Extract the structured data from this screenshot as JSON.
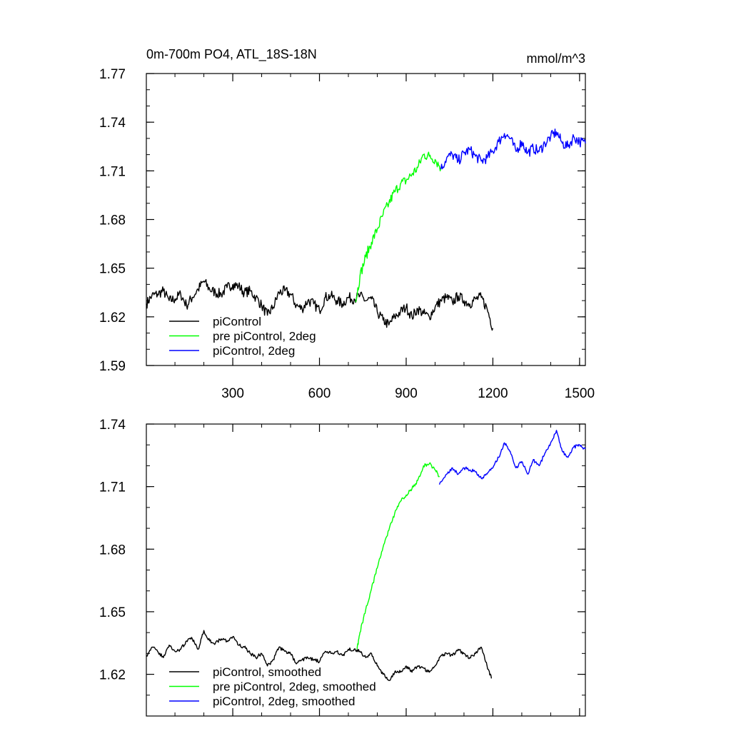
{
  "chart_data": [
    {
      "type": "line",
      "title_left": "0m-700m PO4, ATL_18S-18N",
      "title_right": "mmol/m^3",
      "xlim": [
        1,
        1520
      ],
      "ylim": [
        1.59,
        1.77
      ],
      "x_ticks": [
        300,
        600,
        900,
        1200,
        1500
      ],
      "x_tick_labels": [
        "300",
        "600",
        "900",
        "1200",
        "1500"
      ],
      "y_ticks": [
        1.59,
        1.62,
        1.65,
        1.68,
        1.71,
        1.74,
        1.77
      ],
      "y_tick_labels": [
        "1.59",
        "1.62",
        "1.65",
        "1.68",
        "1.71",
        "1.74",
        "1.77"
      ],
      "legend_position": "bottom-left",
      "series": [
        {
          "name": "piControl",
          "color": "#000000",
          "x": [
            1,
            20,
            40,
            60,
            80,
            100,
            120,
            140,
            160,
            180,
            200,
            220,
            240,
            260,
            280,
            300,
            320,
            340,
            360,
            380,
            400,
            420,
            440,
            460,
            480,
            500,
            520,
            540,
            560,
            580,
            600,
            620,
            640,
            660,
            680,
            700,
            720,
            740,
            760,
            780,
            800,
            820,
            840,
            860,
            880,
            900,
            920,
            940,
            960,
            980,
            1000,
            1020,
            1040,
            1060,
            1080,
            1100,
            1120,
            1140,
            1160,
            1180,
            1200
          ],
          "y": [
            1.628,
            1.633,
            1.634,
            1.636,
            1.63,
            1.631,
            1.634,
            1.627,
            1.632,
            1.637,
            1.642,
            1.637,
            1.635,
            1.634,
            1.638,
            1.64,
            1.639,
            1.635,
            1.636,
            1.632,
            1.627,
            1.621,
            1.626,
            1.635,
            1.636,
            1.634,
            1.627,
            1.625,
            1.63,
            1.628,
            1.624,
            1.632,
            1.633,
            1.63,
            1.628,
            1.632,
            1.631,
            1.633,
            1.63,
            1.631,
            1.623,
            1.618,
            1.615,
            1.62,
            1.623,
            1.626,
            1.62,
            1.625,
            1.622,
            1.62,
            1.626,
            1.63,
            1.632,
            1.629,
            1.633,
            1.63,
            1.628,
            1.631,
            1.632,
            1.625,
            1.613
          ]
        },
        {
          "name": "pre piControl, 2deg",
          "color": "#00ff00",
          "x": [
            725,
            740,
            760,
            780,
            800,
            820,
            840,
            860,
            880,
            900,
            920,
            940,
            960,
            980,
            1000,
            1020
          ],
          "y": [
            1.629,
            1.645,
            1.657,
            1.666,
            1.674,
            1.683,
            1.69,
            1.697,
            1.702,
            1.704,
            1.708,
            1.712,
            1.72,
            1.719,
            1.717,
            1.712
          ]
        },
        {
          "name": "piControl, 2deg",
          "color": "#0000ff",
          "x": [
            1020,
            1040,
            1060,
            1080,
            1100,
            1120,
            1140,
            1160,
            1180,
            1200,
            1220,
            1240,
            1260,
            1280,
            1300,
            1320,
            1340,
            1360,
            1380,
            1400,
            1420,
            1440,
            1460,
            1480,
            1500,
            1520
          ],
          "y": [
            1.711,
            1.718,
            1.72,
            1.716,
            1.721,
            1.723,
            1.719,
            1.716,
            1.718,
            1.722,
            1.728,
            1.733,
            1.73,
            1.722,
            1.728,
            1.721,
            1.724,
            1.722,
            1.727,
            1.731,
            1.734,
            1.727,
            1.725,
            1.731,
            1.728,
            1.727
          ]
        }
      ]
    },
    {
      "type": "line",
      "xlim": [
        1,
        1520
      ],
      "ylim": [
        1.6,
        1.74
      ],
      "x_ticks": [
        300,
        600,
        900,
        1200,
        1500
      ],
      "y_ticks": [
        1.62,
        1.65,
        1.68,
        1.71,
        1.74
      ],
      "y_tick_labels": [
        "1.62",
        "1.65",
        "1.68",
        "1.71",
        "1.74"
      ],
      "legend_position": "bottom-left",
      "series": [
        {
          "name": "piControl, smoothed",
          "color": "#000000",
          "x": [
            1,
            20,
            40,
            60,
            80,
            100,
            120,
            140,
            160,
            180,
            200,
            220,
            240,
            260,
            280,
            300,
            320,
            340,
            360,
            380,
            400,
            420,
            440,
            460,
            480,
            500,
            520,
            540,
            560,
            580,
            600,
            620,
            640,
            660,
            680,
            700,
            720,
            740,
            760,
            780,
            800,
            820,
            840,
            860,
            880,
            900,
            920,
            940,
            960,
            980,
            1000,
            1020,
            1040,
            1060,
            1080,
            1100,
            1120,
            1140,
            1160,
            1180,
            1195
          ],
          "y": [
            1.629,
            1.633,
            1.631,
            1.628,
            1.634,
            1.631,
            1.632,
            1.636,
            1.637,
            1.632,
            1.641,
            1.636,
            1.635,
            1.637,
            1.636,
            1.638,
            1.634,
            1.633,
            1.63,
            1.628,
            1.63,
            1.624,
            1.627,
            1.633,
            1.631,
            1.63,
            1.625,
            1.627,
            1.628,
            1.627,
            1.626,
            1.631,
            1.63,
            1.631,
            1.629,
            1.632,
            1.632,
            1.631,
            1.628,
            1.63,
            1.624,
            1.62,
            1.617,
            1.621,
            1.621,
            1.624,
            1.621,
            1.624,
            1.623,
            1.621,
            1.624,
            1.629,
            1.63,
            1.629,
            1.632,
            1.63,
            1.628,
            1.63,
            1.633,
            1.624,
            1.618
          ]
        },
        {
          "name": "pre piControl, 2deg, smoothed",
          "color": "#00ff00",
          "x": [
            730,
            740,
            760,
            780,
            800,
            820,
            840,
            860,
            880,
            900,
            920,
            940,
            960,
            980,
            1000,
            1015
          ],
          "y": [
            1.632,
            1.64,
            1.651,
            1.661,
            1.671,
            1.681,
            1.689,
            1.697,
            1.703,
            1.706,
            1.709,
            1.713,
            1.72,
            1.721,
            1.718,
            1.715
          ]
        },
        {
          "name": "piControl, 2deg, smoothed",
          "color": "#0000ff",
          "x": [
            1015,
            1040,
            1060,
            1080,
            1100,
            1120,
            1140,
            1160,
            1180,
            1200,
            1220,
            1240,
            1260,
            1280,
            1300,
            1320,
            1340,
            1360,
            1380,
            1400,
            1420,
            1440,
            1460,
            1480,
            1500,
            1520
          ],
          "y": [
            1.711,
            1.716,
            1.719,
            1.716,
            1.719,
            1.718,
            1.717,
            1.714,
            1.716,
            1.719,
            1.724,
            1.731,
            1.727,
            1.719,
            1.722,
            1.716,
            1.723,
            1.72,
            1.726,
            1.731,
            1.737,
            1.727,
            1.724,
            1.729,
            1.73,
            1.728
          ]
        }
      ]
    }
  ]
}
